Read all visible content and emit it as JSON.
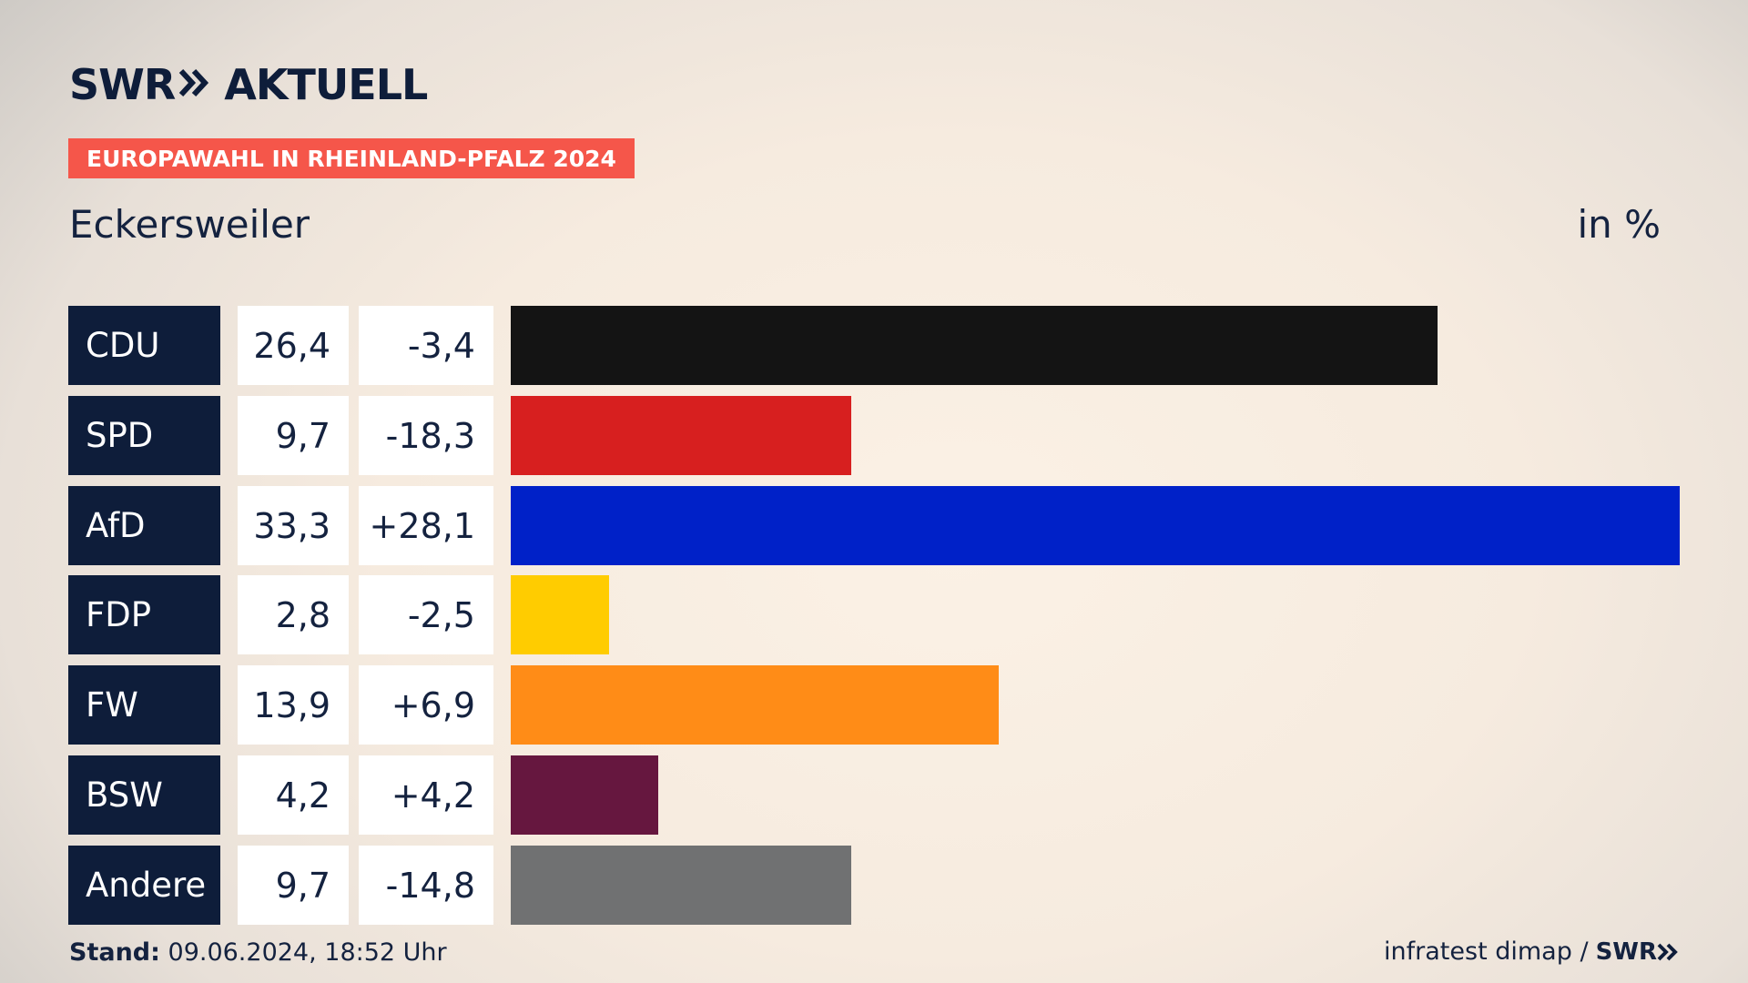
{
  "header": {
    "logo_swr": "SWR",
    "logo_aktuell": "AKTUELL",
    "badge": "EUROPAWAHL IN RHEINLAND-PFALZ 2024",
    "region": "Eckersweiler",
    "unit": "in %"
  },
  "footer": {
    "stand_label": "Stand:",
    "stand_value": "09.06.2024, 18:52 Uhr",
    "source": "infratest dimap /",
    "source_logo": "SWR"
  },
  "colors": {
    "navy": "#0e1d3a",
    "badge_red": "#f5564a"
  },
  "chart_data": {
    "type": "bar",
    "categories": [
      "CDU",
      "SPD",
      "AfD",
      "FDP",
      "FW",
      "BSW",
      "Andere"
    ],
    "values": [
      26.4,
      9.7,
      33.3,
      2.8,
      13.9,
      4.2,
      9.7
    ],
    "values_label": [
      "26,4",
      "9,7",
      "33,3",
      "2,8",
      "13,9",
      "4,2",
      "9,7"
    ],
    "diff_label": [
      "-3,4",
      "-18,3",
      "+28,1",
      "-2,5",
      "+6,9",
      "+4,2",
      "-14,8"
    ],
    "colors": [
      "#141414",
      "#d71f1f",
      "#0021c8",
      "#ffcc00",
      "#ff8c17",
      "#66173f",
      "#707172"
    ],
    "orientation": "horizontal",
    "xlim": [
      0,
      33.3
    ]
  }
}
